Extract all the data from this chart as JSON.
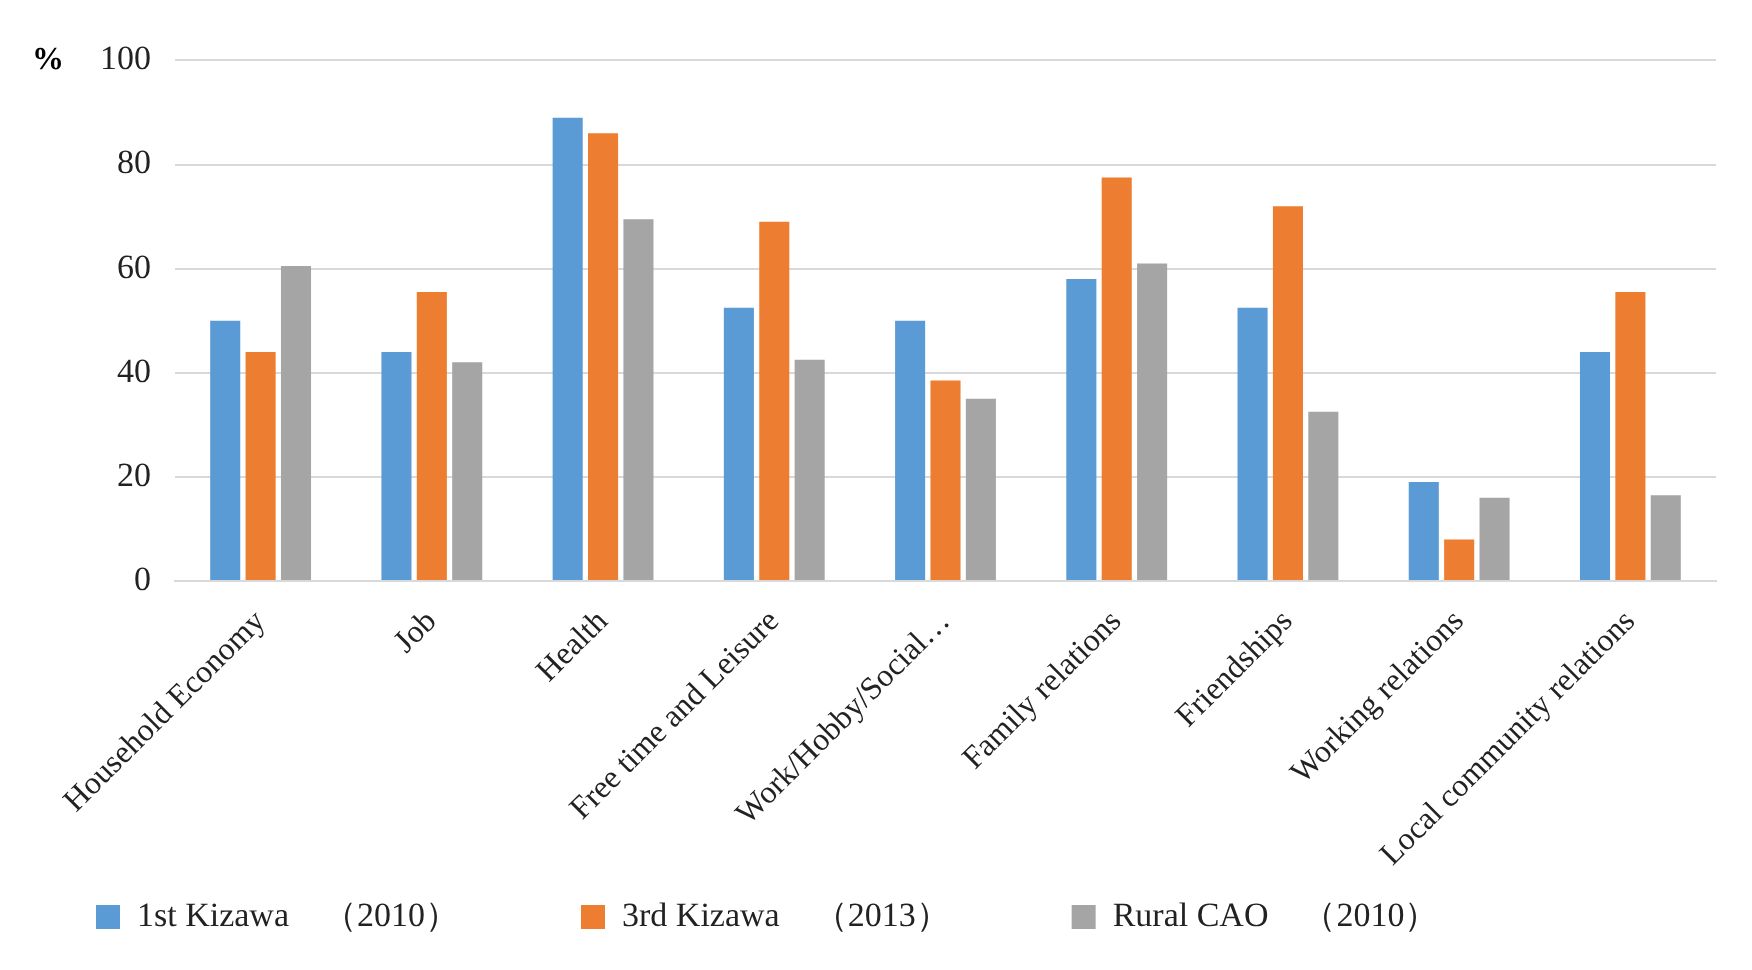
{
  "chart_data": {
    "type": "bar",
    "ylabel": "%",
    "categories": [
      "Household Economy",
      "Job",
      "Health",
      "Free time and Leisure",
      "Work/Hobby/Social…",
      "Family relations",
      "Friendships",
      "Working relations",
      "Local community relations"
    ],
    "series": [
      {
        "name": "1st Kizawa　（2010）",
        "color": "#5b9bd5",
        "values": [
          50,
          44,
          89,
          52.5,
          50,
          58,
          52.5,
          19,
          44
        ]
      },
      {
        "name": "3rd Kizawa　（2013）",
        "color": "#ed7d31",
        "values": [
          44,
          55.5,
          86,
          69,
          38.5,
          77.5,
          72,
          8,
          55.5
        ]
      },
      {
        "name": "Rural CAO　（2010）",
        "color": "#a5a5a5",
        "values": [
          60.5,
          42,
          69.5,
          42.5,
          35,
          61,
          32.5,
          16,
          16.5
        ]
      }
    ],
    "ylim": [
      0,
      100
    ],
    "yticks": [
      0,
      20,
      40,
      60,
      80,
      100
    ],
    "grid": "y",
    "legend": "bottom"
  }
}
